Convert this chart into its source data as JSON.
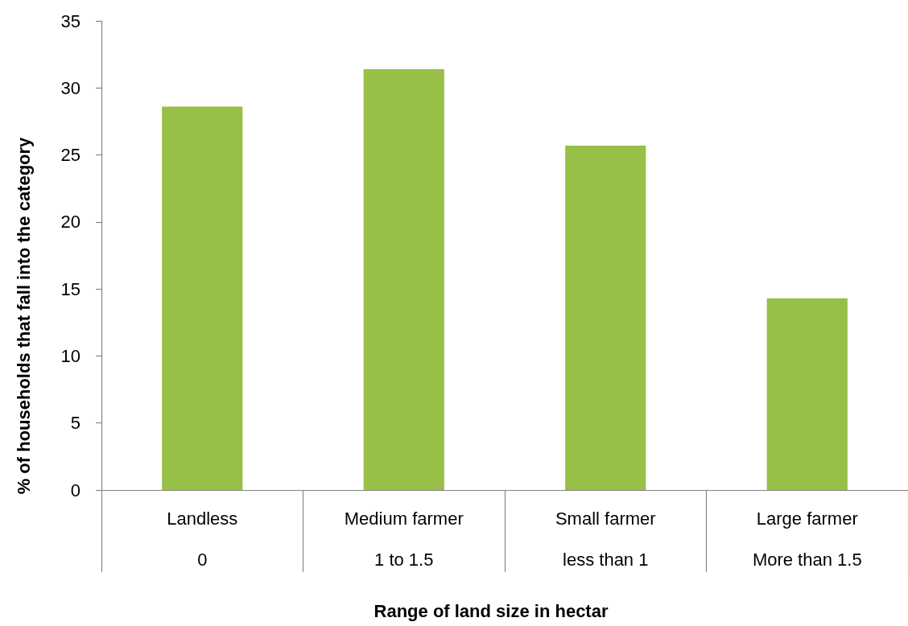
{
  "chart_data": {
    "type": "bar",
    "xlabel": "Range of land size in hectar",
    "ylabel": "% of households that fall into the category",
    "categories": [
      "Landless\n0",
      "Medium farmer\n1 to 1.5",
      "Small farmer\nless than 1",
      "Large farmer\nMore than 1.5"
    ],
    "values": [
      28.6,
      31.4,
      25.7,
      14.3
    ],
    "color": "#98bf47",
    "ylim": [
      0,
      35
    ],
    "yticks": [
      0,
      5,
      10,
      15,
      20,
      25,
      30,
      35
    ],
    "grid": false
  }
}
